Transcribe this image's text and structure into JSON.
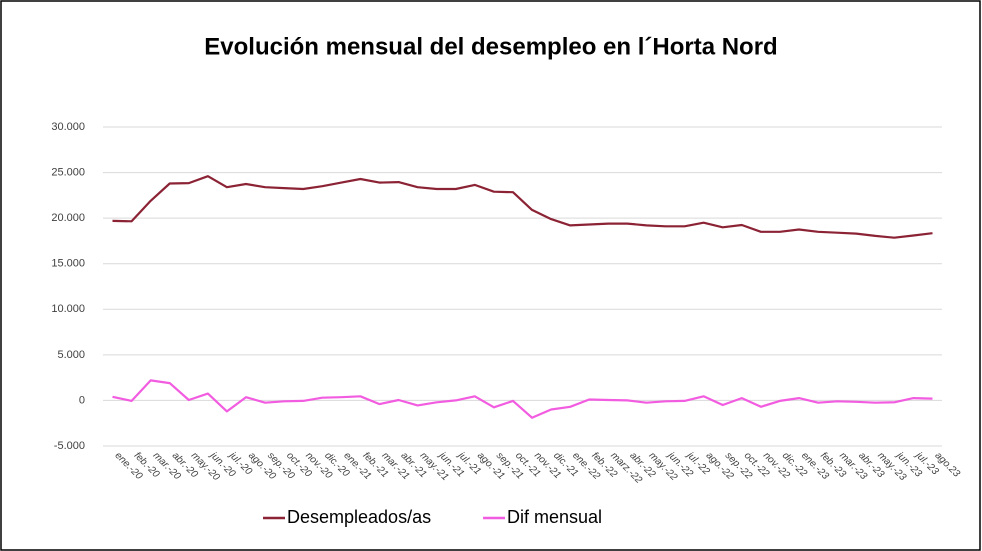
{
  "chart_data": {
    "type": "line",
    "title": "Evolución mensual del desempleo en l´Horta Nord",
    "categories": [
      "ene.-20",
      "feb.-20",
      "mar.-20",
      "abr.-20",
      "may.-20",
      "jun.-20",
      "jul.-20",
      "ago.-20",
      "sep.-20",
      "oct.-20",
      "nov.-20",
      "dic.-20",
      "ene.-21",
      "feb.-21",
      "mar.-21",
      "abr.-21",
      "may.-21",
      "jun.-21",
      "jul.-21",
      "ago.-21",
      "sep.-21",
      "oct.-21",
      "nov.-21",
      "dic.-21",
      "ene.-22",
      "feb.-22",
      "marz.-22",
      "abr.-22",
      "may.-22",
      "jun.-22",
      "jul.-22",
      "ago.-22",
      "sep.-22",
      "oct.-22",
      "nov.-22",
      "dic.-22",
      "ene.-23",
      "feb.-23",
      "mar.-23",
      "abr.-23",
      "may.-23",
      "jun.-23",
      "jul.-23",
      "ago.23"
    ],
    "series": [
      {
        "name": "Desempleados/as",
        "color": "#8b2335",
        "values": [
          19700,
          19650,
          21900,
          23800,
          23850,
          24600,
          23400,
          23750,
          23400,
          23300,
          23200,
          23500,
          23900,
          24300,
          23900,
          23950,
          23400,
          23200,
          23200,
          23650,
          22900,
          22850,
          20900,
          19900,
          19200,
          19300,
          19400,
          19400,
          19200,
          19100,
          19100,
          19500,
          19000,
          19250,
          18500,
          18500,
          18750,
          18500,
          18400,
          18300,
          18050,
          17850,
          18100,
          18350
        ]
      },
      {
        "name": "Dif mensual",
        "color": "#f25ce0",
        "values": [
          400,
          -50,
          2200,
          1900,
          50,
          750,
          -1200,
          350,
          -250,
          -100,
          -50,
          300,
          350,
          450,
          -400,
          50,
          -550,
          -200,
          0,
          450,
          -750,
          -50,
          -1900,
          -1000,
          -700,
          100,
          50,
          0,
          -250,
          -100,
          -50,
          450,
          -500,
          250,
          -700,
          -50,
          250,
          -250,
          -100,
          -150,
          -250,
          -200,
          250,
          200
        ]
      }
    ],
    "ylim": [
      -5000,
      30000
    ],
    "yticks": [
      {
        "value": -5000,
        "label": "-5.000"
      },
      0,
      {
        "value": 5000,
        "label": "5.000"
      },
      {
        "value": 10000,
        "label": "10.000"
      },
      {
        "value": 15000,
        "label": "15.000"
      },
      {
        "value": 20000,
        "label": "20.000"
      },
      {
        "value": 25000,
        "label": "25.000"
      },
      {
        "value": 30000,
        "label": "30.000"
      }
    ],
    "grid": true
  }
}
